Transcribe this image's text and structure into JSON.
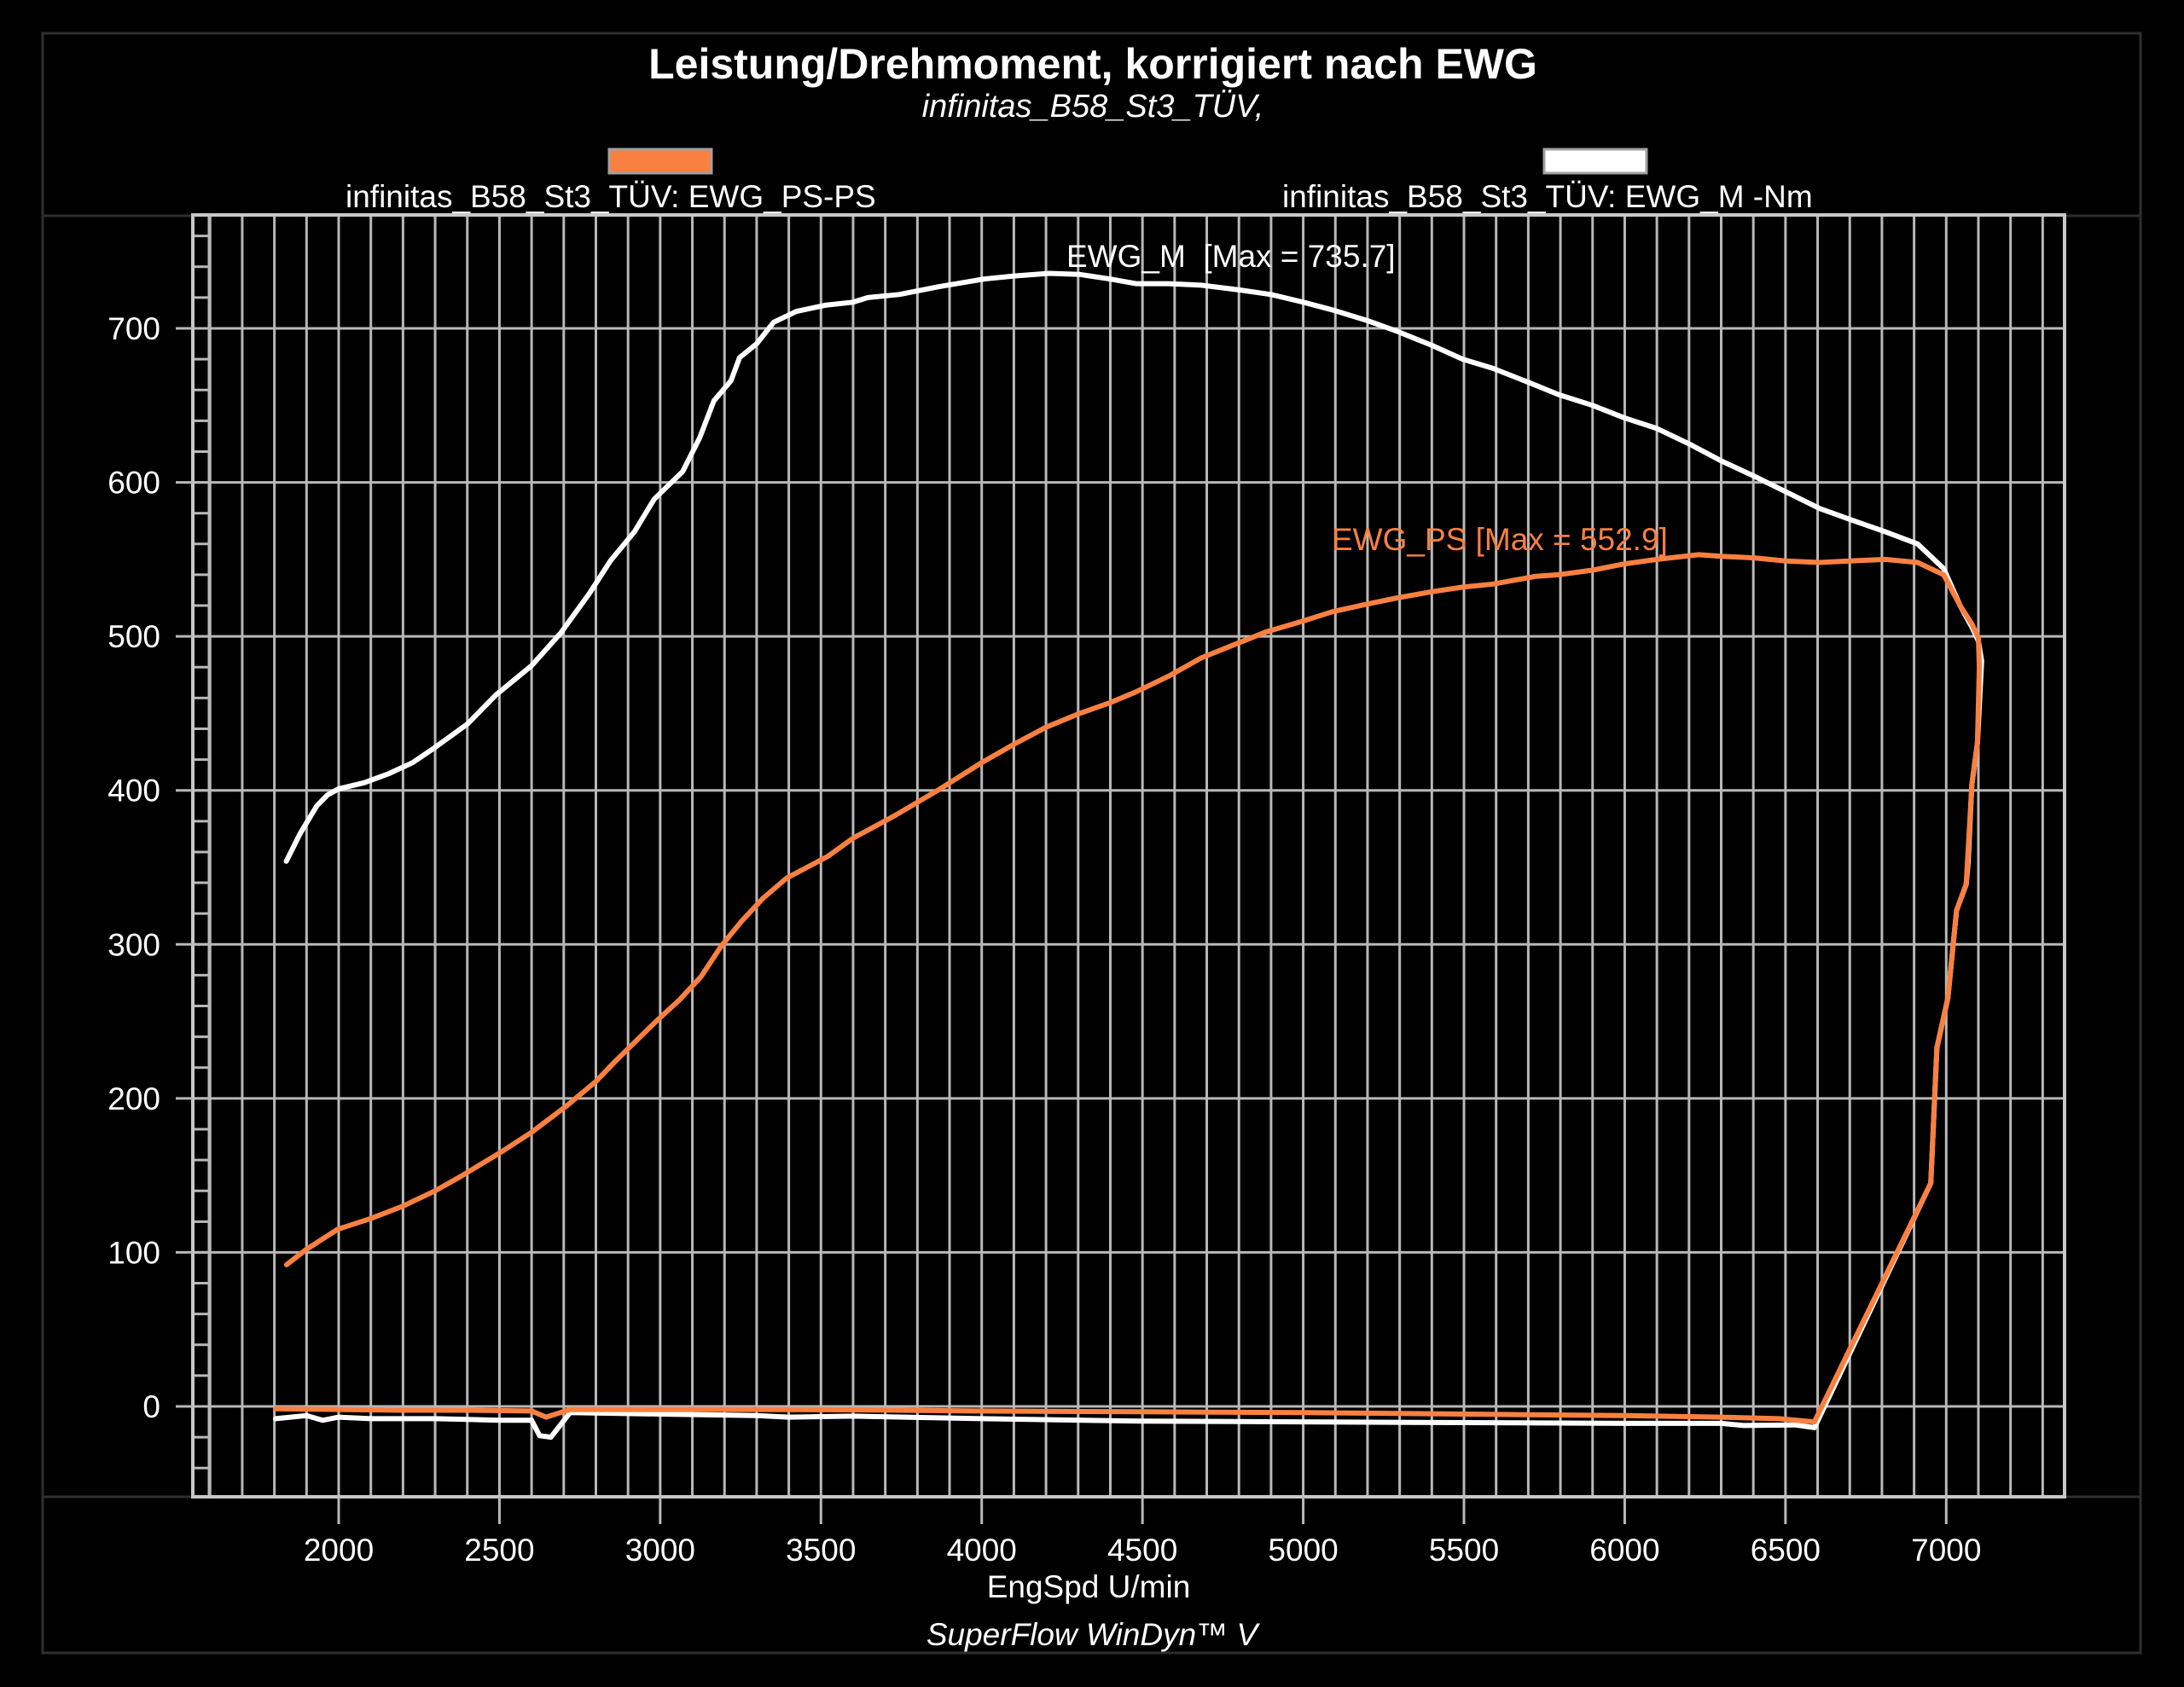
{
  "chart_data": {
    "type": "line",
    "title": "Leistung/Drehmoment, korrigiert nach EWG",
    "subtitle": "infinitas_B58_St3_TÜV,",
    "xlabel": "EngSpd U/min",
    "ylabel": "",
    "footer": "SuperFlow WinDyn™ V",
    "xlim": [
      1550,
      7370
    ],
    "ylim": [
      -58,
      773
    ],
    "grid": true,
    "grid_x_step": 100,
    "grid_y_step": 100,
    "y_minor_step": 20,
    "x_ticks": [
      2000,
      2500,
      3000,
      3500,
      4000,
      4500,
      5000,
      5500,
      6000,
      6500,
      7000
    ],
    "x_tick_labels": [
      "2000",
      "2500",
      "3000",
      "3500",
      "4000",
      "4500",
      "5000",
      "5500",
      "6000",
      "6500",
      "7000"
    ],
    "y_ticks": [
      0,
      100,
      200,
      300,
      400,
      500,
      600,
      700
    ],
    "y_tick_labels": [
      "0",
      "100",
      "200",
      "300",
      "400",
      "500",
      "600",
      "700"
    ],
    "legend_position": "top",
    "series": [
      {
        "name": "infinitas_B58_St3_TÜV: EWG_PS-PS",
        "short_name": "EWG_PS",
        "unit": "PS",
        "color": "#F98041",
        "max": 552.9,
        "annotation": "EWG_PS [Max = 552.9]",
        "points": [
          [
            1838,
            92
          ],
          [
            1900,
            102
          ],
          [
            1997,
            115
          ],
          [
            2100,
            122
          ],
          [
            2199,
            130
          ],
          [
            2300,
            140
          ],
          [
            2377,
            149
          ],
          [
            2504,
            165
          ],
          [
            2600,
            178
          ],
          [
            2708,
            195
          ],
          [
            2800,
            211
          ],
          [
            2860,
            224
          ],
          [
            2987,
            250
          ],
          [
            3060,
            264
          ],
          [
            3127,
            279
          ],
          [
            3190,
            299
          ],
          [
            3253,
            315
          ],
          [
            3320,
            330
          ],
          [
            3393,
            343
          ],
          [
            3520,
            357
          ],
          [
            3600,
            369
          ],
          [
            3733,
            384
          ],
          [
            3871,
            401
          ],
          [
            4000,
            418
          ],
          [
            4101,
            430
          ],
          [
            4200,
            441
          ],
          [
            4305,
            450
          ],
          [
            4400,
            457
          ],
          [
            4480,
            464
          ],
          [
            4580,
            474
          ],
          [
            4683,
            486
          ],
          [
            4790,
            495
          ],
          [
            4886,
            503
          ],
          [
            5000,
            510
          ],
          [
            5090,
            516
          ],
          [
            5200,
            521
          ],
          [
            5293,
            525
          ],
          [
            5400,
            529
          ],
          [
            5496,
            532
          ],
          [
            5591,
            534
          ],
          [
            5724,
            539
          ],
          [
            5794,
            540
          ],
          [
            5900,
            543
          ],
          [
            5997,
            547
          ],
          [
            6100,
            550
          ],
          [
            6230,
            553
          ],
          [
            6300,
            552
          ],
          [
            6403,
            551
          ],
          [
            6500,
            549
          ],
          [
            6607,
            548
          ],
          [
            6700,
            549
          ],
          [
            6810,
            550
          ],
          [
            6911,
            548
          ],
          [
            6992,
            540
          ],
          [
            7043,
            520
          ],
          [
            7080,
            508
          ],
          [
            7100,
            499
          ],
          [
            7103,
            480
          ],
          [
            7097,
            431
          ],
          [
            7080,
            404
          ],
          [
            7062,
            339
          ],
          [
            7032,
            322
          ],
          [
            7005,
            265
          ],
          [
            6971,
            233
          ],
          [
            6952,
            145
          ],
          [
            6590,
            -10
          ],
          [
            6480,
            -8
          ],
          [
            6300,
            -7
          ],
          [
            6000,
            -6
          ],
          [
            5500,
            -5
          ],
          [
            5000,
            -4
          ],
          [
            4500,
            -3.5
          ],
          [
            4000,
            -3
          ],
          [
            3600,
            -2.2
          ],
          [
            3300,
            -2
          ],
          [
            3000,
            -2
          ],
          [
            2720,
            -2
          ],
          [
            2690,
            -4
          ],
          [
            2645,
            -7
          ],
          [
            2600,
            -3
          ],
          [
            2400,
            -2.5
          ],
          [
            2200,
            -2.5
          ],
          [
            2000,
            -2
          ],
          [
            1804,
            -1.5
          ]
        ]
      },
      {
        "name": "infinitas_B58_St3_TÜV: EWG_M -Nm",
        "short_name": "EWG_M",
        "unit": "Nm",
        "color": "#FFFFFF",
        "max": 735.7,
        "annotation": "EWG_M  [Max = 735.7]",
        "points": [
          [
            1837,
            354
          ],
          [
            1880,
            372
          ],
          [
            1932,
            390
          ],
          [
            1965,
            397
          ],
          [
            2000,
            401
          ],
          [
            2080,
            405
          ],
          [
            2157,
            411
          ],
          [
            2230,
            418
          ],
          [
            2300,
            428
          ],
          [
            2400,
            443
          ],
          [
            2489,
            462
          ],
          [
            2600,
            481
          ],
          [
            2690,
            502
          ],
          [
            2780,
            528
          ],
          [
            2845,
            549
          ],
          [
            2920,
            568
          ],
          [
            2981,
            589
          ],
          [
            3070,
            607
          ],
          [
            3123,
            629
          ],
          [
            3167,
            653
          ],
          [
            3220,
            666
          ],
          [
            3247,
            681
          ],
          [
            3300,
            690
          ],
          [
            3353,
            704
          ],
          [
            3424,
            711
          ],
          [
            3513,
            715
          ],
          [
            3600,
            717
          ],
          [
            3646,
            720
          ],
          [
            3743,
            722
          ],
          [
            3866,
            727
          ],
          [
            4006,
            732
          ],
          [
            4100,
            734
          ],
          [
            4210,
            735.7
          ],
          [
            4305,
            735
          ],
          [
            4400,
            732
          ],
          [
            4480,
            729
          ],
          [
            4580,
            729
          ],
          [
            4683,
            728
          ],
          [
            4800,
            725
          ],
          [
            4900,
            722
          ],
          [
            5000,
            717
          ],
          [
            5090,
            712
          ],
          [
            5200,
            705
          ],
          [
            5293,
            698
          ],
          [
            5400,
            689
          ],
          [
            5496,
            680
          ],
          [
            5591,
            674
          ],
          [
            5700,
            665
          ],
          [
            5794,
            657
          ],
          [
            5900,
            650
          ],
          [
            5997,
            642
          ],
          [
            6100,
            635
          ],
          [
            6200,
            625
          ],
          [
            6300,
            614
          ],
          [
            6403,
            604
          ],
          [
            6500,
            594
          ],
          [
            6607,
            583
          ],
          [
            6700,
            576
          ],
          [
            6810,
            568
          ],
          [
            6911,
            560
          ],
          [
            6992,
            544
          ],
          [
            7043,
            520
          ],
          [
            7080,
            506
          ],
          [
            7100,
            497
          ],
          [
            7110,
            484
          ],
          [
            7097,
            431
          ],
          [
            7080,
            404
          ],
          [
            7068,
            353
          ],
          [
            7062,
            339
          ],
          [
            7032,
            322
          ],
          [
            7005,
            265
          ],
          [
            6971,
            233
          ],
          [
            6952,
            145
          ],
          [
            6590,
            -13.8
          ],
          [
            6530,
            -12
          ],
          [
            6370,
            -12.4
          ],
          [
            6300,
            -11
          ],
          [
            6000,
            -11
          ],
          [
            5500,
            -10.5
          ],
          [
            5000,
            -10
          ],
          [
            4495,
            -9.6
          ],
          [
            4000,
            -8
          ],
          [
            3600,
            -6.3
          ],
          [
            3400,
            -7
          ],
          [
            3300,
            -6
          ],
          [
            3000,
            -5
          ],
          [
            2720,
            -4
          ],
          [
            2690,
            -12
          ],
          [
            2660,
            -20
          ],
          [
            2625,
            -19
          ],
          [
            2600,
            -9
          ],
          [
            2500,
            -9
          ],
          [
            2400,
            -8.5
          ],
          [
            2300,
            -8
          ],
          [
            2200,
            -8
          ],
          [
            2100,
            -8
          ],
          [
            2000,
            -7
          ],
          [
            1950,
            -9
          ],
          [
            1900,
            -6
          ],
          [
            1850,
            -7
          ],
          [
            1804,
            -8
          ]
        ]
      }
    ]
  },
  "legend": {
    "items": [
      {
        "label": "infinitas_B58_St3_TÜV: EWG_PS-PS",
        "color": "#F98041"
      },
      {
        "label": "infinitas_B58_St3_TÜV: EWG_M -Nm",
        "color": "#FFFFFF"
      }
    ]
  }
}
